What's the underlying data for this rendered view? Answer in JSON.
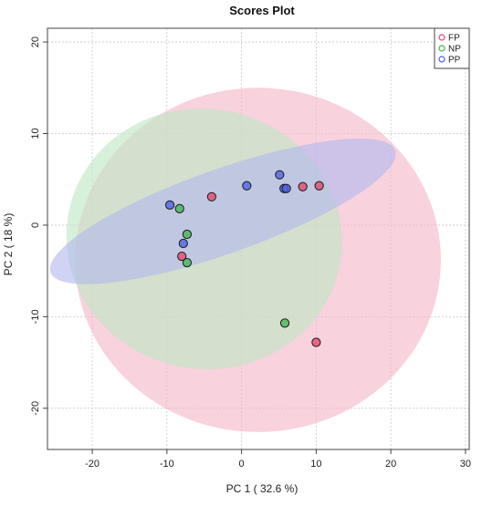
{
  "chart_data": {
    "type": "scatter",
    "title": "Scores Plot",
    "xlabel": "PC 1 ( 32.6 %)",
    "ylabel": "PC 2 ( 18 %)",
    "xlim": [
      -26,
      30.5
    ],
    "ylim": [
      -24.5,
      21.5
    ],
    "xticks": [
      "-20",
      "-10",
      "0",
      "10",
      "20",
      "30"
    ],
    "yticks": [
      "-20",
      "-10",
      "0",
      "10",
      "20"
    ],
    "grid": true,
    "legend_position": "top-right",
    "series": [
      {
        "name": "FP",
        "color": "#e8406a",
        "fill": "#f4b7c8",
        "points": [
          [
            -4,
            3.1
          ],
          [
            8.2,
            4.2
          ],
          [
            10.4,
            4.3
          ],
          [
            -8,
            -3.4
          ],
          [
            10,
            -12.8
          ]
        ],
        "ellipse": {
          "cx": 2.2,
          "cy": -3.8,
          "rx": 24.5,
          "ry": 18.8,
          "angle": 0
        }
      },
      {
        "name": "NP",
        "color": "#3cb44b",
        "fill": "#bfe6c4",
        "points": [
          [
            -8.3,
            1.8
          ],
          [
            -7.3,
            -1
          ],
          [
            -7.3,
            -4.1
          ],
          [
            5.8,
            -10.7
          ]
        ],
        "ellipse": {
          "cx": -5,
          "cy": -1.5,
          "rx": 18.5,
          "ry": 14.2,
          "angle": -12
        }
      },
      {
        "name": "PP",
        "color": "#4a5ee6",
        "fill": "#b3b8ee",
        "points": [
          [
            -9.6,
            2.2
          ],
          [
            0.7,
            4.3
          ],
          [
            5.1,
            5.5
          ],
          [
            5.7,
            4
          ],
          [
            6,
            4
          ],
          [
            -7.8,
            -2
          ]
        ],
        "ellipse": {
          "cx": -2.5,
          "cy": 1.5,
          "rx": 24.5,
          "ry": 4.6,
          "angle": 19.5
        }
      }
    ]
  }
}
